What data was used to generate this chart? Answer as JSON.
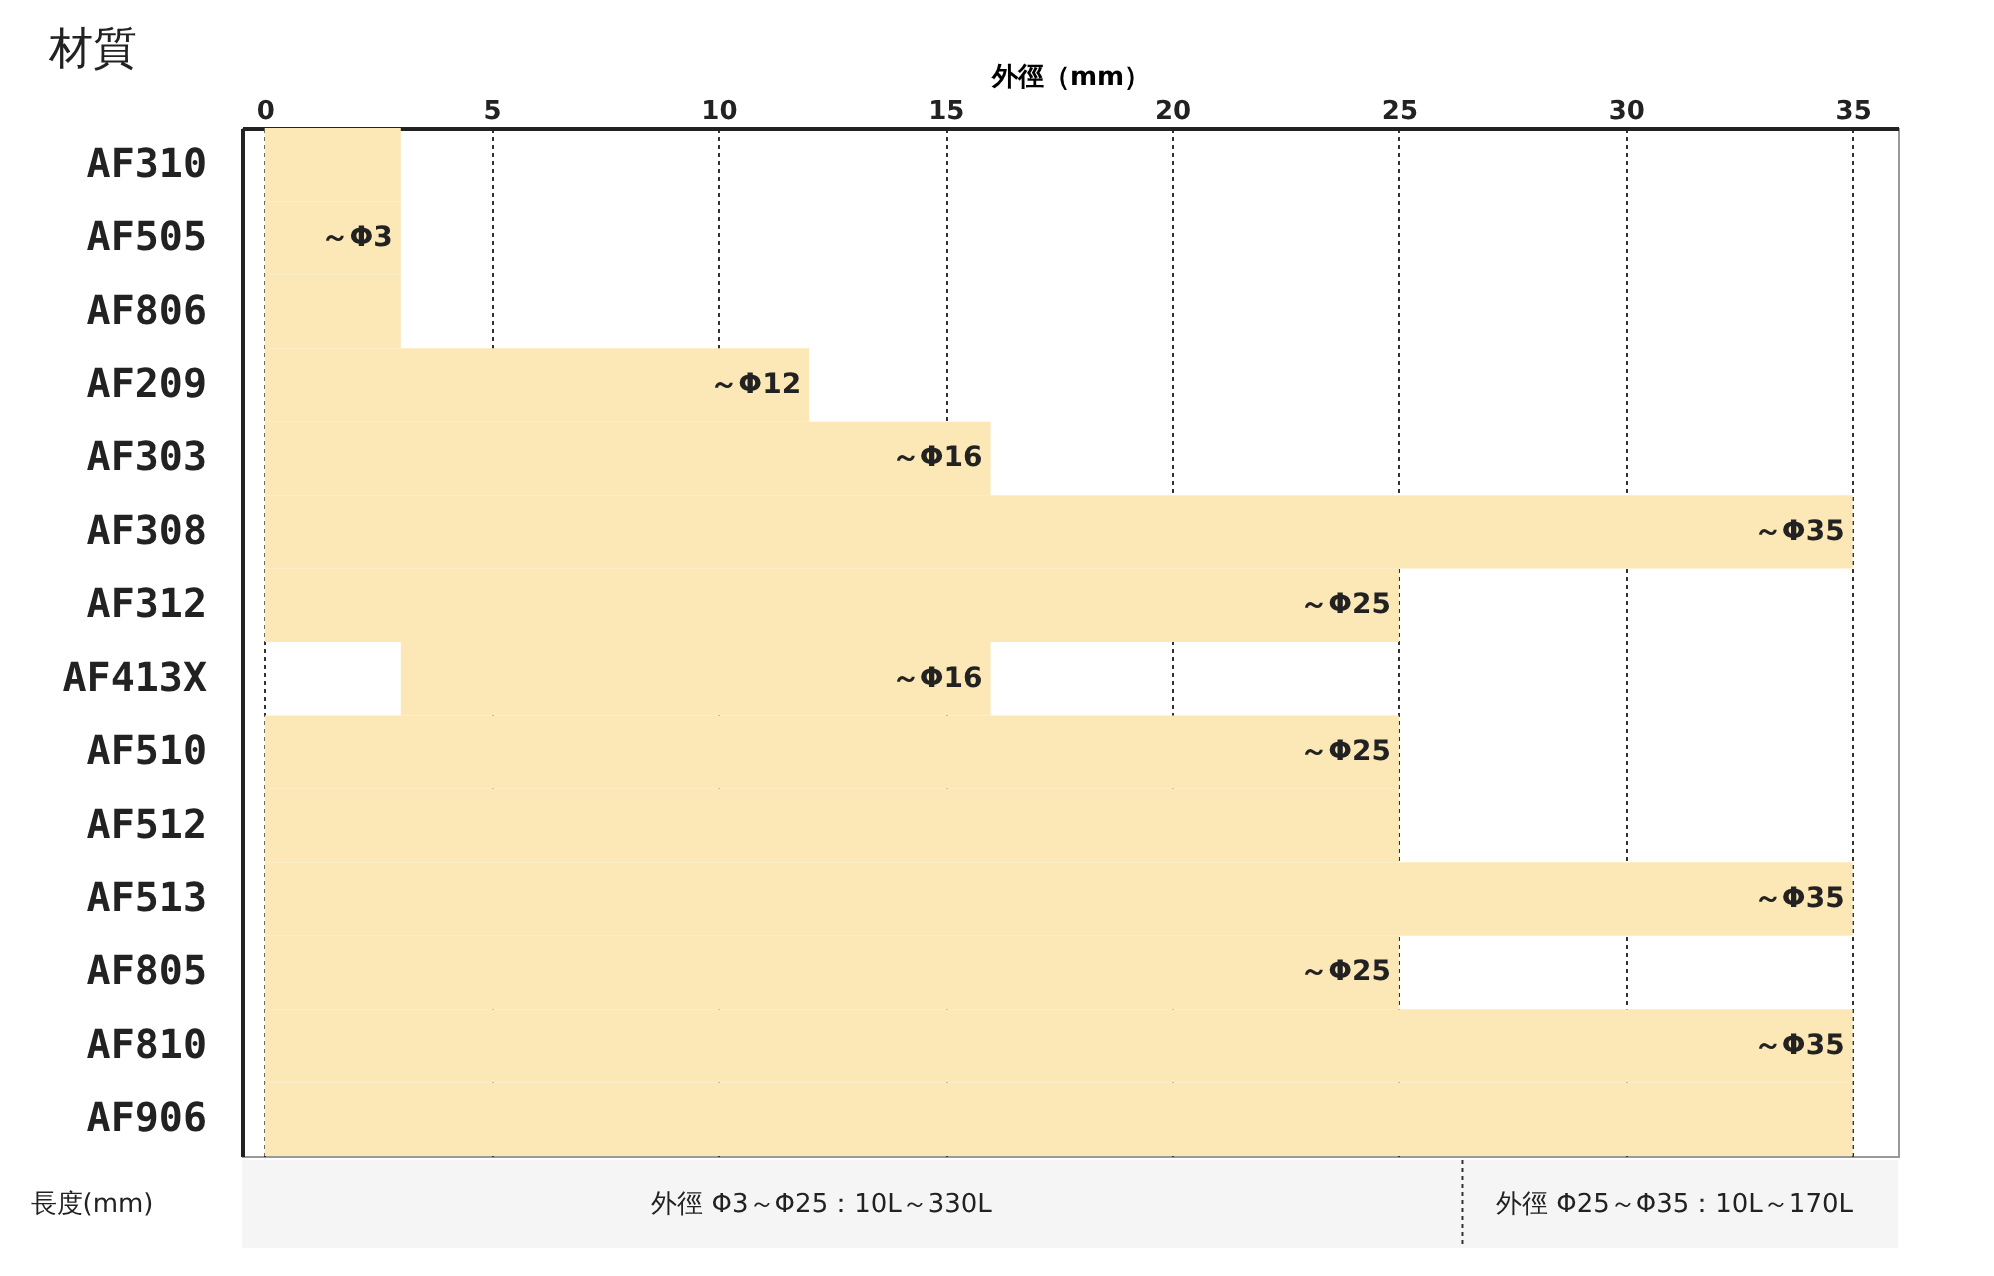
{
  "chart_data": {
    "type": "bar",
    "orientation": "horizontal",
    "xlabel": "外徑（mm）",
    "ylabel": "材質",
    "categories": [
      "AF310",
      "AF505",
      "AF806",
      "AF209",
      "AF303",
      "AF308",
      "AF312",
      "AF413X",
      "AF510",
      "AF512",
      "AF513",
      "AF805",
      "AF810",
      "AF906"
    ],
    "values": [
      3,
      3,
      3,
      12,
      16,
      35,
      25,
      13,
      25,
      25,
      35,
      25,
      35,
      35
    ],
    "base": [
      0,
      0,
      0,
      0,
      0,
      0,
      0,
      3,
      0,
      0,
      0,
      0,
      0,
      0
    ],
    "color": "#fce8b6",
    "xlim": [
      -0.5,
      36
    ],
    "xticks": [
      0,
      5,
      10,
      15,
      20,
      25,
      30,
      35
    ],
    "grid": "x",
    "annotations": [
      {
        "text": "～Φ3",
        "x": 3,
        "y": "AF505"
      },
      {
        "text": "～Φ12",
        "x": 12,
        "y": "AF209"
      },
      {
        "text": "～Φ16",
        "x": 16,
        "y": "AF303"
      },
      {
        "text": "～Φ35",
        "x": 35,
        "y": "AF308"
      },
      {
        "text": "～Φ25",
        "x": 25,
        "y": "AF312"
      },
      {
        "text": "～Φ16",
        "x": 16,
        "y": "AF413X"
      },
      {
        "text": "～Φ25",
        "x": 25,
        "y": "AF510"
      },
      {
        "text": "～Φ35",
        "x": 35,
        "y": "AF513"
      },
      {
        "text": "～Φ25",
        "x": 25,
        "y": "AF805"
      },
      {
        "text": "～Φ35",
        "x": 35,
        "y": "AF810"
      },
      "長度(mm)",
      "外徑 Φ3～Φ25：10L～330L",
      "外徑 Φ25～Φ35：10L～170L"
    ]
  }
}
